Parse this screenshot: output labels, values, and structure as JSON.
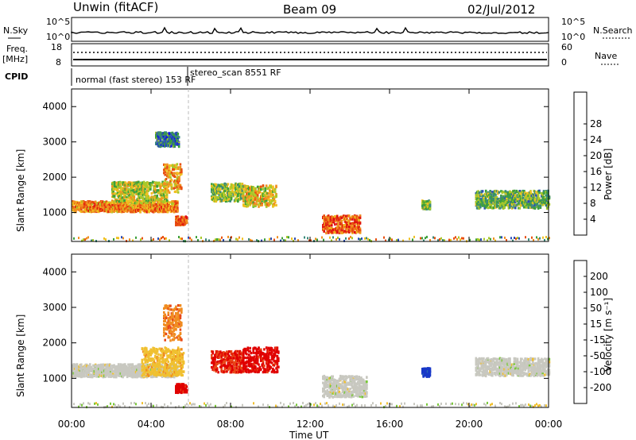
{
  "header": {
    "left": "Unwin (fitACF)",
    "center": "Beam 09",
    "right": "02/Jul/2012"
  },
  "aux_panels": {
    "nsky_label": "N.Sky",
    "nsearch_label": "N.Search",
    "noise_ticks_left": [
      "10^5",
      "10^0"
    ],
    "noise_ticks_right": [
      "10^5",
      "10^0"
    ],
    "freq_label_top": "Freq.",
    "freq_label_unit": "[MHz]",
    "freq_ticks": [
      "18",
      "8"
    ],
    "nave_label": "Nave",
    "nave_ticks": [
      "60",
      "0"
    ],
    "cpid_label": "CPID",
    "cpid_segments": [
      {
        "text": "normal (fast stereo) 153 RF",
        "start_hour": 0.0
      },
      {
        "text": "stereo_scan 8551 RF",
        "start_hour": 5.9
      }
    ]
  },
  "axis": {
    "xlabel": "Time UT",
    "ylabel": "Slant Range [km]",
    "xticks": [
      "00:00",
      "04:00",
      "08:00",
      "12:00",
      "16:00",
      "20:00",
      "00:00"
    ],
    "yticks": [
      "1000",
      "2000",
      "3000",
      "4000"
    ]
  },
  "power_scale": {
    "label": "Power [dB]",
    "ticks": [
      "4",
      "8",
      "12",
      "16",
      "20",
      "24",
      "28"
    ],
    "colors": [
      "#1010e8",
      "#2a4cb8",
      "#3a8a7a",
      "#3ca03a",
      "#a8c828",
      "#f0c020",
      "#f09020",
      "#e85010",
      "#e01010"
    ]
  },
  "velocity_scale": {
    "label": "Velocity [m s⁻¹]",
    "ticks": [
      "200",
      "100",
      "50",
      "15",
      "-15",
      "-50",
      "-100",
      "-200"
    ],
    "colors": [
      "#1838c8",
      "#2a6ab0",
      "#3c9a4a",
      "#7ac83a",
      "#c8c8c0",
      "#f0c030",
      "#f08c20",
      "#e84818",
      "#e00000"
    ]
  },
  "chart_data": [
    {
      "type": "heatmap",
      "title": "Power",
      "xlabel": "Time UT",
      "ylabel": "Slant Range [km]",
      "xlim_hours": [
        0,
        24
      ],
      "ylim_km": [
        180,
        4500
      ],
      "colorbar": {
        "label": "Power [dB]",
        "range": [
          0,
          30
        ]
      },
      "regions": [
        {
          "t0": 0.0,
          "t1": 5.3,
          "r_km": 1200,
          "sigma_km": 150,
          "value": 22
        },
        {
          "t0": 2.0,
          "t1": 4.8,
          "r_km": 1600,
          "sigma_km": 300,
          "value": 16
        },
        {
          "t0": 4.2,
          "t1": 5.4,
          "r_km": 3100,
          "sigma_km": 200,
          "value": 8
        },
        {
          "t0": 4.6,
          "t1": 5.5,
          "r_km": 2000,
          "sigma_km": 400,
          "value": 20
        },
        {
          "t0": 5.2,
          "t1": 5.8,
          "r_km": 800,
          "sigma_km": 120,
          "value": 26
        },
        {
          "t0": 7.0,
          "t1": 8.6,
          "r_km": 1600,
          "sigma_km": 250,
          "value": 14
        },
        {
          "t0": 8.6,
          "t1": 10.3,
          "r_km": 1500,
          "sigma_km": 300,
          "value": 18
        },
        {
          "t0": 12.6,
          "t1": 14.5,
          "r_km": 700,
          "sigma_km": 250,
          "value": 24
        },
        {
          "t0": 17.6,
          "t1": 18.0,
          "r_km": 1250,
          "sigma_km": 120,
          "value": 14
        },
        {
          "t0": 20.3,
          "t1": 24.0,
          "r_km": 1400,
          "sigma_km": 250,
          "value": 12
        }
      ]
    },
    {
      "type": "heatmap",
      "title": "Velocity",
      "xlabel": "Time UT",
      "ylabel": "Slant Range [km]",
      "xlim_hours": [
        0,
        24
      ],
      "ylim_km": [
        180,
        4500
      ],
      "colorbar": {
        "label": "Velocity [m s⁻¹]",
        "range": [
          -250,
          250
        ]
      },
      "regions": [
        {
          "t0": 0.0,
          "t1": 5.3,
          "r_km": 1250,
          "sigma_km": 180,
          "value": 0
        },
        {
          "t0": 3.5,
          "t1": 5.6,
          "r_km": 1500,
          "sigma_km": 400,
          "value": -60
        },
        {
          "t0": 4.6,
          "t1": 5.5,
          "r_km": 2600,
          "sigma_km": 500,
          "value": -120
        },
        {
          "t0": 5.2,
          "t1": 5.8,
          "r_km": 750,
          "sigma_km": 120,
          "value": -220
        },
        {
          "t0": 7.0,
          "t1": 8.6,
          "r_km": 1500,
          "sigma_km": 300,
          "value": -200
        },
        {
          "t0": 8.6,
          "t1": 10.4,
          "r_km": 1550,
          "sigma_km": 350,
          "value": -220
        },
        {
          "t0": 12.6,
          "t1": 14.8,
          "r_km": 800,
          "sigma_km": 300,
          "value": 0
        },
        {
          "t0": 17.6,
          "t1": 18.0,
          "r_km": 1200,
          "sigma_km": 120,
          "value": 220
        },
        {
          "t0": 20.3,
          "t1": 24.0,
          "r_km": 1350,
          "sigma_km": 250,
          "value": 0
        }
      ]
    }
  ]
}
